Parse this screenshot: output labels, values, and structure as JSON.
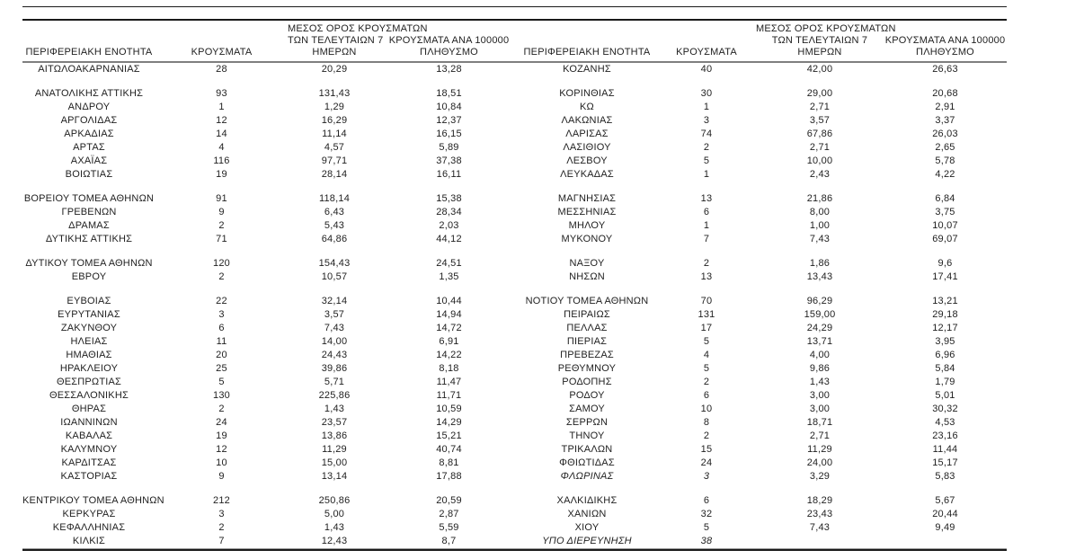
{
  "colors": {
    "background": "#ffffff",
    "text": "#1f1f1f",
    "rule_dark": "#1a1a1a",
    "rule_gray": "#7f7f7f",
    "rule_light": "#9a9a9a"
  },
  "table": {
    "headers": {
      "region": "ΠΕΡΙΦΕΡΕΙΑΚΗ ΕΝΟΤΗΤΑ",
      "cases": "ΚΡΟΥΣΜΑΤΑ",
      "avg7_line1": "ΜΕΣΟΣ ΟΡΟΣ ΚΡΟΥΣΜΑΤΩΝ",
      "avg7_line2": "ΤΩΝ ΤΕΛΕΥΤΑΙΩΝ 7",
      "avg7_line3": "ΗΜΕΡΩΝ",
      "per100k_line1": "ΚΡΟΥΣΜΑΤΑ ΑΝΑ 100000",
      "per100k_line2": "ΠΛΗΘΥΣΜΟ"
    },
    "sections": [
      {
        "rows": [
          {
            "l": [
              "ΑΙΤΩΛΟΑΚΑΡΝΑΝΙΑΣ",
              "28",
              "20,29",
              "13,28"
            ],
            "r": [
              "ΚΟΖΑΝΗΣ",
              "40",
              "42,00",
              "26,63"
            ]
          }
        ]
      },
      {
        "rows": [
          {
            "l": [
              "ΑΝΑΤΟΛΙΚΗΣ ΑΤΤΙΚΗΣ",
              "93",
              "131,43",
              "18,51"
            ],
            "r": [
              "ΚΟΡΙΝΘΙΑΣ",
              "30",
              "29,00",
              "20,68"
            ]
          },
          {
            "l": [
              "ΑΝΔΡΟΥ",
              "1",
              "1,29",
              "10,84"
            ],
            "r": [
              "ΚΩ",
              "1",
              "2,71",
              "2,91"
            ]
          },
          {
            "l": [
              "ΑΡΓΟΛΙΔΑΣ",
              "12",
              "16,29",
              "12,37"
            ],
            "r": [
              "ΛΑΚΩΝΙΑΣ",
              "3",
              "3,57",
              "3,37"
            ]
          },
          {
            "l": [
              "ΑΡΚΑΔΙΑΣ",
              "14",
              "11,14",
              "16,15"
            ],
            "r": [
              "ΛΑΡΙΣΑΣ",
              "74",
              "67,86",
              "26,03"
            ]
          },
          {
            "l": [
              "ΑΡΤΑΣ",
              "4",
              "4,57",
              "5,89"
            ],
            "r": [
              "ΛΑΣΙΘΙΟΥ",
              "2",
              "2,71",
              "2,65"
            ]
          },
          {
            "l": [
              "ΑΧΑΪΑΣ",
              "116",
              "97,71",
              "37,38"
            ],
            "r": [
              "ΛΕΣΒΟΥ",
              "5",
              "10,00",
              "5,78"
            ]
          },
          {
            "l": [
              "ΒΟΙΩΤΙΑΣ",
              "19",
              "28,14",
              "16,11"
            ],
            "r": [
              "ΛΕΥΚΑΔΑΣ",
              "1",
              "2,43",
              "4,22"
            ]
          }
        ]
      },
      {
        "rows": [
          {
            "l": [
              "ΒΟΡΕΙΟΥ ΤΟΜΕΑ ΑΘΗΝΩΝ",
              "91",
              "118,14",
              "15,38"
            ],
            "r": [
              "ΜΑΓΝΗΣΙΑΣ",
              "13",
              "21,86",
              "6,84"
            ]
          },
          {
            "l": [
              "ΓΡΕΒΕΝΩΝ",
              "9",
              "6,43",
              "28,34"
            ],
            "r": [
              "ΜΕΣΣΗΝΙΑΣ",
              "6",
              "8,00",
              "3,75"
            ]
          },
          {
            "l": [
              "ΔΡΑΜΑΣ",
              "2",
              "5,43",
              "2,03"
            ],
            "r": [
              "ΜΗΛΟΥ",
              "1",
              "1,00",
              "10,07"
            ]
          },
          {
            "l": [
              "ΔΥΤΙΚΗΣ ΑΤΤΙΚΗΣ",
              "71",
              "64,86",
              "44,12"
            ],
            "r": [
              "ΜΥΚΟΝΟΥ",
              "7",
              "7,43",
              "69,07"
            ]
          }
        ]
      },
      {
        "rows": [
          {
            "l": [
              "ΔΥΤΙΚΟΥ ΤΟΜΕΑ ΑΘΗΝΩΝ",
              "120",
              "154,43",
              "24,51"
            ],
            "r": [
              "ΝΑΞΟΥ",
              "2",
              "1,86",
              "9,6"
            ]
          },
          {
            "l": [
              "ΕΒΡΟΥ",
              "2",
              "10,57",
              "1,35"
            ],
            "r": [
              "ΝΗΣΩΝ",
              "13",
              "13,43",
              "17,41"
            ]
          }
        ]
      },
      {
        "rows": [
          {
            "l": [
              "ΕΥΒΟΙΑΣ",
              "22",
              "32,14",
              "10,44"
            ],
            "r": [
              "ΝΟΤΙΟΥ ΤΟΜΕΑ ΑΘΗΝΩΝ",
              "70",
              "96,29",
              "13,21"
            ]
          },
          {
            "l": [
              "ΕΥΡΥΤΑΝΙΑΣ",
              "3",
              "3,57",
              "14,94"
            ],
            "r": [
              "ΠΕΙΡΑΙΩΣ",
              "131",
              "159,00",
              "29,18"
            ]
          },
          {
            "l": [
              "ΖΑΚΥΝΘΟΥ",
              "6",
              "7,43",
              "14,72"
            ],
            "r": [
              "ΠΕΛΛΑΣ",
              "17",
              "24,29",
              "12,17"
            ]
          },
          {
            "l": [
              "ΗΛΕΙΑΣ",
              "11",
              "14,00",
              "6,91"
            ],
            "r": [
              "ΠΙΕΡΙΑΣ",
              "5",
              "13,71",
              "3,95"
            ]
          },
          {
            "l": [
              "ΗΜΑΘΙΑΣ",
              "20",
              "24,43",
              "14,22"
            ],
            "r": [
              "ΠΡΕΒΕΖΑΣ",
              "4",
              "4,00",
              "6,96"
            ]
          },
          {
            "l": [
              "ΗΡΑΚΛΕΙΟΥ",
              "25",
              "39,86",
              "8,18"
            ],
            "r": [
              "ΡΕΘΥΜΝΟΥ",
              "5",
              "9,86",
              "5,84"
            ]
          },
          {
            "l": [
              "ΘΕΣΠΡΩΤΙΑΣ",
              "5",
              "5,71",
              "11,47"
            ],
            "r": [
              "ΡΟΔΟΠΗΣ",
              "2",
              "1,43",
              "1,79"
            ]
          },
          {
            "l": [
              "ΘΕΣΣΑΛΟΝΙΚΗΣ",
              "130",
              "225,86",
              "11,71"
            ],
            "r": [
              "ΡΟΔΟΥ",
              "6",
              "3,00",
              "5,01"
            ]
          },
          {
            "l": [
              "ΘΗΡΑΣ",
              "2",
              "1,43",
              "10,59"
            ],
            "r": [
              "ΣΑΜΟΥ",
              "10",
              "3,00",
              "30,32"
            ]
          },
          {
            "l": [
              "ΙΩΑΝΝΙΝΩΝ",
              "24",
              "23,57",
              "14,29"
            ],
            "r": [
              "ΣΕΡΡΩΝ",
              "8",
              "18,71",
              "4,53"
            ]
          },
          {
            "l": [
              "ΚΑΒΑΛΑΣ",
              "19",
              "13,86",
              "15,21"
            ],
            "r": [
              "ΤΗΝΟΥ",
              "2",
              "2,71",
              "23,16"
            ]
          },
          {
            "l": [
              "ΚΑΛΥΜΝΟΥ",
              "12",
              "11,29",
              "40,74"
            ],
            "r": [
              "ΤΡΙΚΑΛΩΝ",
              "15",
              "11,29",
              "11,44"
            ]
          },
          {
            "l": [
              "ΚΑΡΔΙΤΣΑΣ",
              "10",
              "15,00",
              "8,81"
            ],
            "r": [
              "ΦΘΙΩΤΙΔΑΣ",
              "24",
              "24,00",
              "15,17"
            ]
          },
          {
            "l": [
              "ΚΑΣΤΟΡΙΑΣ",
              "9",
              "13,14",
              "17,88"
            ],
            "r": [
              "ΦΛΩΡΙΝΑΣ",
              "3",
              "3,29",
              "5,83"
            ],
            "r_italic": [
              0,
              1
            ]
          }
        ]
      },
      {
        "rows": [
          {
            "l": [
              "ΚΕΝΤΡΙΚΟΥ ΤΟΜΕΑ ΑΘΗΝΩΝ",
              "212",
              "250,86",
              "20,59"
            ],
            "r": [
              "ΧΑΛΚΙΔΙΚΗΣ",
              "6",
              "18,29",
              "5,67"
            ]
          },
          {
            "l": [
              "ΚΕΡΚΥΡΑΣ",
              "3",
              "5,00",
              "2,87"
            ],
            "r": [
              "ΧΑΝΙΩΝ",
              "32",
              "23,43",
              "20,44"
            ]
          },
          {
            "l": [
              "ΚΕΦΑΛΛΗΝΙΑΣ",
              "2",
              "1,43",
              "5,59"
            ],
            "r": [
              "ΧΙΟΥ",
              "5",
              "7,43",
              "9,49"
            ]
          },
          {
            "l": [
              "ΚΙΛΚΙΣ",
              "7",
              "12,43",
              "8,7"
            ],
            "r": [
              "ΥΠΟ ΔΙΕΡΕΥΝΗΣΗ",
              "38",
              "",
              ""
            ],
            "r_italic": [
              0,
              1
            ]
          }
        ]
      }
    ]
  }
}
